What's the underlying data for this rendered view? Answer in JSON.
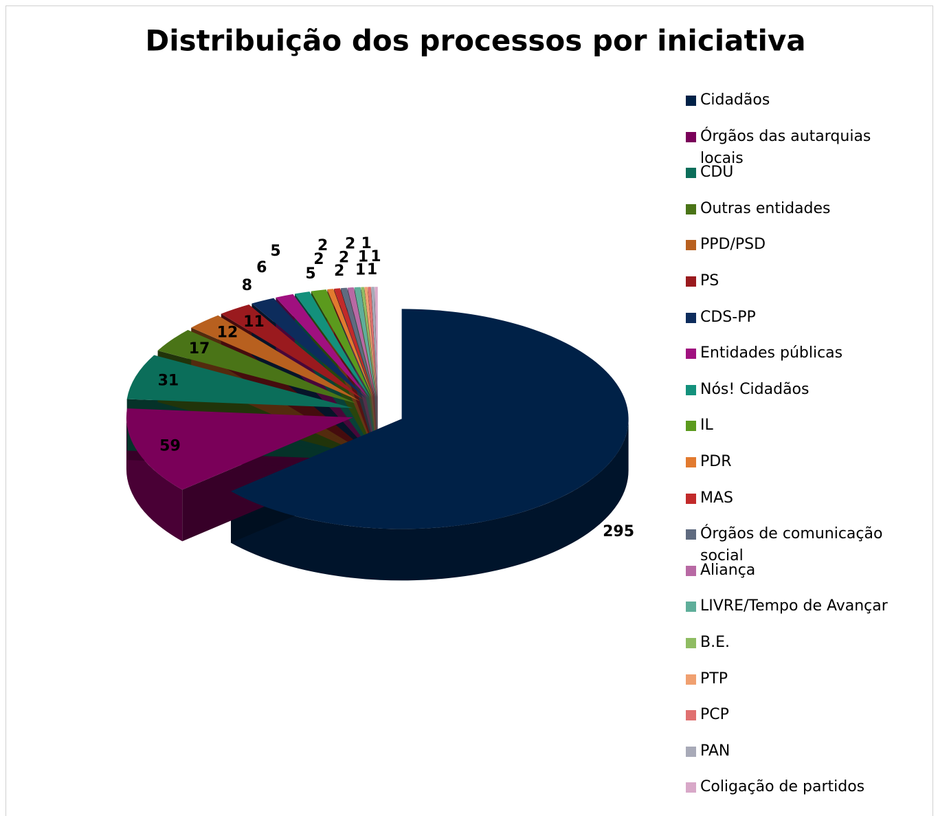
{
  "chart_data": {
    "type": "pie3d",
    "title": "Distribuição dos processos por iniciativa",
    "categories": [
      "Cidadãos",
      "Órgãos das autarquias locais",
      "CDU",
      "Outras entidades",
      "PPD/PSD",
      "PS",
      "CDS-PP",
      "Entidades públicas",
      "Nós! Cidadãos",
      "IL",
      "PDR",
      "MAS",
      "Órgãos de comunicação social",
      "Aliança",
      "LIVRE/Tempo de Avançar",
      "B.E.",
      "PTP",
      "PCP",
      "PAN",
      "Coligação de partidos"
    ],
    "values": [
      295,
      59,
      31,
      17,
      12,
      11,
      8,
      6,
      5,
      5,
      2,
      2,
      2,
      2,
      2,
      1,
      1,
      1,
      1,
      1
    ],
    "colors": [
      "#002147",
      "#7a0059",
      "#0b6e5a",
      "#4a7417",
      "#b8601f",
      "#9a1a1e",
      "#0d2c5c",
      "#a0107f",
      "#13917c",
      "#5b9a1d",
      "#e27a2f",
      "#c22a2a",
      "#5f6b80",
      "#b869a4",
      "#5fae9a",
      "#8fbc62",
      "#f0a070",
      "#e07070",
      "#a8aab8",
      "#d8a8c8"
    ],
    "legend": "right"
  }
}
